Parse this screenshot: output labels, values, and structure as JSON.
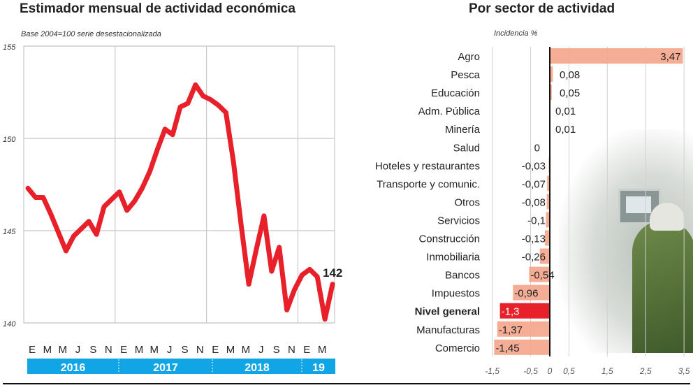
{
  "left_chart": {
    "title": "Estimador mensual de actividad económica",
    "subtitle": "Base 2004=100 serie desestacionalizada",
    "last_label": "142",
    "month_labels": [
      "E",
      "M",
      "M",
      "J",
      "S",
      "N",
      "E",
      "M",
      "M",
      "J",
      "S",
      "N",
      "E",
      "M",
      "M",
      "J",
      "S",
      "N",
      "E",
      "M"
    ],
    "year_labels": [
      "2016",
      "2017",
      "2018",
      "19"
    ]
  },
  "right_chart": {
    "title": "Por sector de actividad",
    "subtitle": "Incidencia %"
  },
  "chart_data": [
    {
      "type": "line",
      "title": "Estimador mensual de actividad económica",
      "subtitle": "Base 2004=100 serie desestacionalizada",
      "x_start": "2016-01",
      "x_end": "2019-05",
      "x_frequency": "monthly",
      "ylim": [
        140,
        155
      ],
      "yticks": [
        140,
        145,
        150,
        155
      ],
      "grid": true,
      "color": "#e8202a",
      "values": [
        147.3,
        146.8,
        146.8,
        145.9,
        144.9,
        143.9,
        144.7,
        145.1,
        145.5,
        144.8,
        146.3,
        146.7,
        147.1,
        146.1,
        146.6,
        147.3,
        148.2,
        149.4,
        150.5,
        150.2,
        151.7,
        151.9,
        152.9,
        152.3,
        152.1,
        151.8,
        151.4,
        148.7,
        145.3,
        142.1,
        144.0,
        145.8,
        142.8,
        144.1,
        140.7,
        141.8,
        142.6,
        142.9,
        142.5,
        140.2,
        142.1
      ],
      "annotation": "142"
    },
    {
      "type": "bar",
      "orientation": "horizontal",
      "title": "Por sector de actividad",
      "xlabel": "Incidencia %",
      "xlim": [
        -1.5,
        3.5
      ],
      "xticks": [
        -1.5,
        -0.5,
        0,
        0.5,
        1.5,
        2.5,
        3.5
      ],
      "xtick_labels": [
        "-1,5",
        "-0,5",
        "0",
        "0,5",
        "1,5",
        "2,5",
        "3,5"
      ],
      "grid": true,
      "bar_color": "#f4a48a",
      "highlight_color": "#e8202a",
      "categories": [
        "Agro",
        "Pesca",
        "Educación",
        "Adm. Pública",
        "Minería",
        "Salud",
        "Hoteles y restaurantes",
        "Transporte y comunic.",
        "Otros",
        "Servicios",
        "Construcción",
        "Inmobiliaria",
        "Bancos",
        "Impuestos",
        "Nivel general",
        "Manufacturas",
        "Comercio"
      ],
      "values": [
        3.47,
        0.08,
        0.05,
        0.01,
        0.01,
        0,
        -0.03,
        -0.07,
        -0.08,
        -0.1,
        -0.13,
        -0.26,
        -0.54,
        -0.96,
        -1.3,
        -1.37,
        -1.45
      ],
      "value_labels": [
        "3,47",
        "0,08",
        "0,05",
        "0,01",
        "0,01",
        "0",
        "-0,03",
        "-0,07",
        "-0,08",
        "-0,1",
        "-0,13",
        "-0,26",
        "-0,54",
        "-0,96",
        "-1,3",
        "-1,37",
        "-1,45"
      ],
      "highlight": "Nivel general"
    }
  ]
}
